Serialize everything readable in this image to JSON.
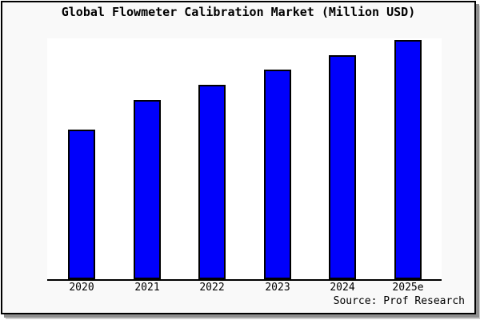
{
  "chart_data": {
    "type": "bar",
    "title": "Global Flowmeter Calibration Market (Million USD)",
    "categories": [
      "2020",
      "2021",
      "2022",
      "2023",
      "2024",
      "2025e"
    ],
    "values": [
      62.6,
      74.9,
      81.4,
      87.5,
      93.5,
      100.0
    ],
    "value_note": "no y-axis ticks or data labels shown; values estimated from bar heights, indexed to 2025e = 100",
    "xlabel": "",
    "ylabel": "",
    "ylim": [
      0,
      100
    ],
    "grid": false,
    "legend": false,
    "y_axis_shown": false,
    "bar_fill_color": "#0000fb",
    "bar_border_color": "#000000"
  },
  "source_credit": "Source: Prof Research",
  "colors": {
    "page_background": "#f9f9f9",
    "plot_background": "#ffffff",
    "frame_border": "#000000",
    "shadow": "#8f8f8f",
    "text": "#000000"
  }
}
